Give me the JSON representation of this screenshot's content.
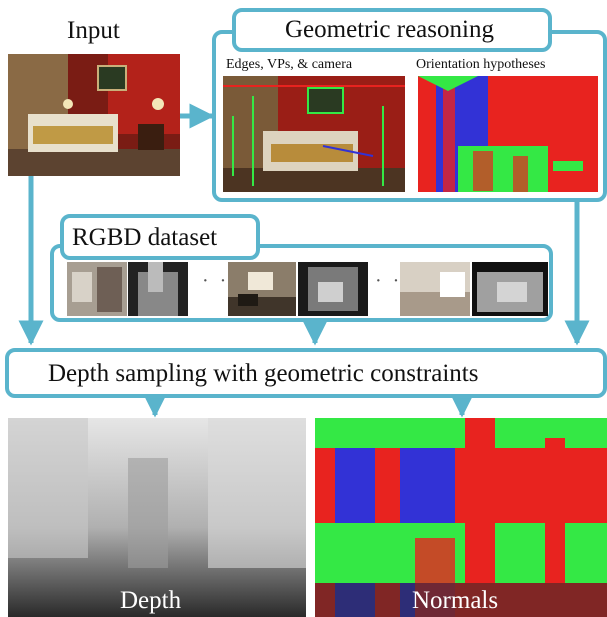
{
  "labels": {
    "input": "Input",
    "geometric_reasoning": "Geometric reasoning",
    "edges_vps_camera": "Edges, VPs, & camera",
    "orientation_hypotheses": "Orientation hypotheses",
    "rgbd_dataset": "RGBD dataset",
    "depth_sampling": "Depth sampling with geometric constraints",
    "depth": "Depth",
    "normals": "Normals"
  },
  "colors": {
    "accent": "#5ab4cc",
    "orientation_red": "#e8231f",
    "orientation_green": "#34e845",
    "orientation_blue": "#3232d6"
  }
}
